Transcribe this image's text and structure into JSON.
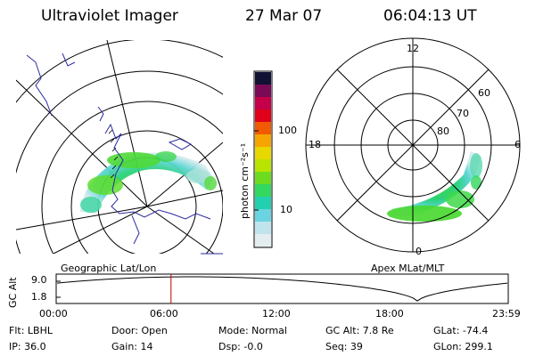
{
  "header": {
    "instrument": "Ultraviolet Imager",
    "date": "27 Mar 07",
    "time": "06:04:13 UT"
  },
  "left_map": {
    "label": "Geographic Lat/Lon"
  },
  "colorbar": {
    "unit_label": "photon cm⁻²s⁻¹",
    "ticks": [
      "100",
      "10"
    ],
    "colors": [
      "#111133",
      "#7a0a55",
      "#c4004a",
      "#e0001a",
      "#f25a00",
      "#f5a400",
      "#e8d800",
      "#b8e400",
      "#6cdc20",
      "#32d860",
      "#22d0b0",
      "#6ad4e0",
      "#c0e4ec",
      "#e4eef0"
    ]
  },
  "right_map": {
    "label": "Apex MLat/MLT",
    "mlt_labels": [
      "12",
      "18",
      "6",
      "0"
    ],
    "lat_labels": [
      "60",
      "70",
      "80"
    ]
  },
  "altitude_plot": {
    "ylabel": "GC Alt",
    "yticks": [
      "9.0",
      "1.8"
    ],
    "xticks": [
      "00:00",
      "06:00",
      "12:00",
      "18:00",
      "23:59"
    ],
    "current_hours": 6.07
  },
  "info": {
    "filter": "Flt: LBHL",
    "ip": "IP: 36.0",
    "door": "Door: Open",
    "gain": "Gain: 14",
    "mode": "Mode: Normal",
    "dsp": "Dsp:    -0.0",
    "gc_alt": "GC Alt: 7.8 Re",
    "seq": "Seq: 39",
    "glat": "GLat: -74.4",
    "glon": "GLon: 299.1"
  },
  "colors": {
    "outline": "#000000",
    "time_marker": "#c00000",
    "coast": "#2a2aa0"
  }
}
